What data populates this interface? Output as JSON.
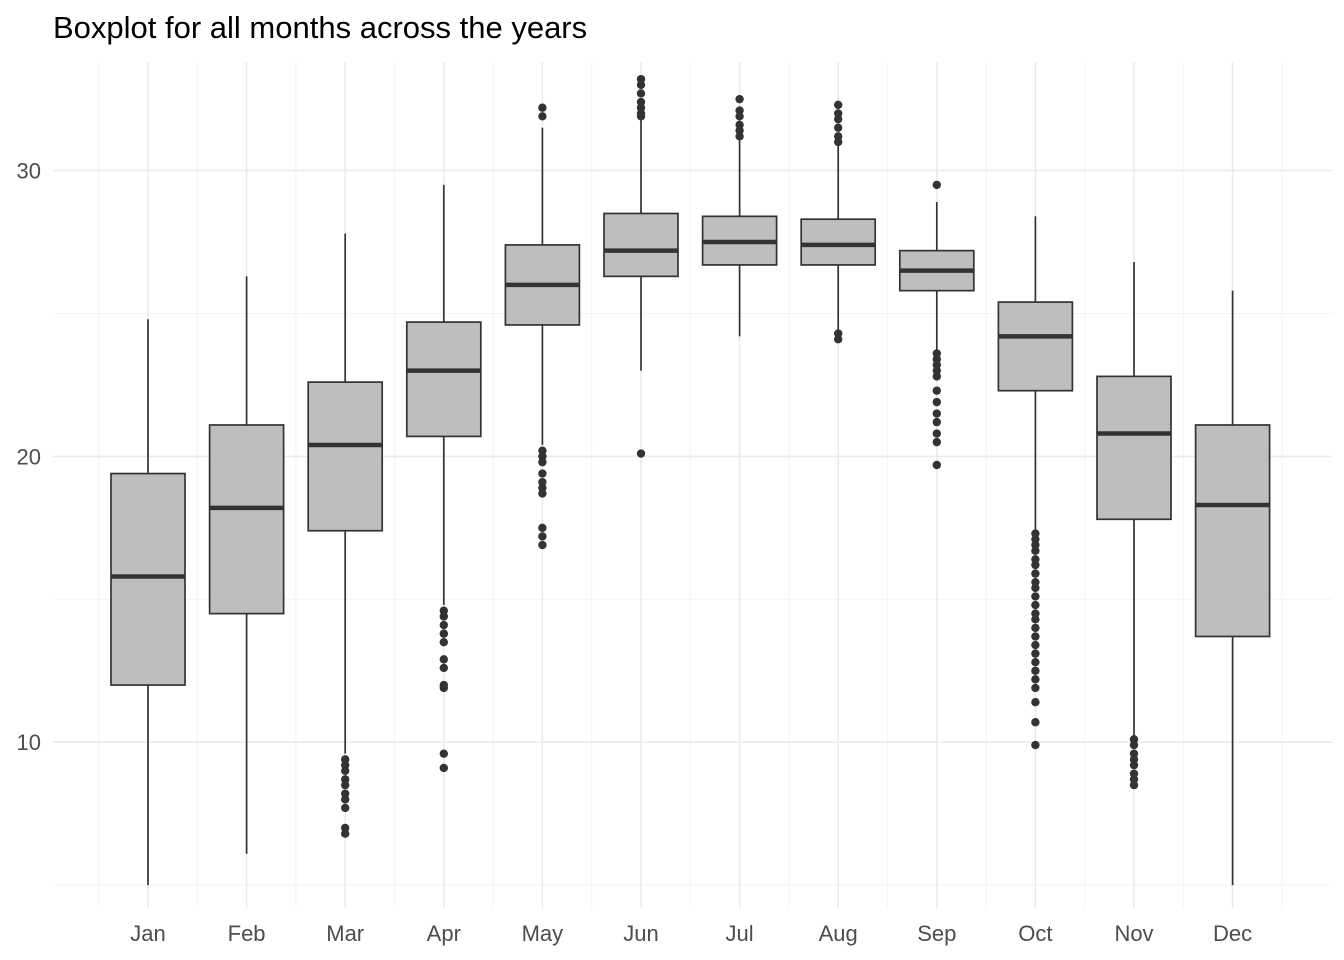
{
  "chart_data": {
    "type": "boxplot",
    "title": "Boxplot for all months across the years",
    "xlabel": "",
    "ylabel": "",
    "ylim": [
      4.2,
      33.8
    ],
    "yticks": [
      10,
      20,
      30
    ],
    "grid": true,
    "colors": {
      "box_fill": "#bebebe",
      "box_line": "#333333",
      "outlier": "#333333",
      "grid_major": "#ebebeb",
      "grid_minor": "#f4f4f4"
    },
    "categories": [
      "Jan",
      "Feb",
      "Mar",
      "Apr",
      "May",
      "Jun",
      "Jul",
      "Aug",
      "Sep",
      "Oct",
      "Nov",
      "Dec"
    ],
    "boxes": [
      {
        "label": "Jan",
        "whisker_low": 5.0,
        "q1": 12.0,
        "median": 15.8,
        "q3": 19.4,
        "whisker_high": 24.8,
        "outliers": []
      },
      {
        "label": "Feb",
        "whisker_low": 6.1,
        "q1": 14.5,
        "median": 18.2,
        "q3": 21.1,
        "whisker_high": 26.3,
        "outliers": []
      },
      {
        "label": "Mar",
        "whisker_low": 9.6,
        "q1": 17.4,
        "median": 20.4,
        "q3": 22.6,
        "whisker_high": 27.8,
        "outliers": [
          9.4,
          9.2,
          9.0,
          8.7,
          8.5,
          8.2,
          8.0,
          7.7,
          7.0,
          6.8
        ]
      },
      {
        "label": "Apr",
        "whisker_low": 14.8,
        "q1": 20.7,
        "median": 23.0,
        "q3": 24.7,
        "whisker_high": 29.5,
        "outliers": [
          14.6,
          14.4,
          14.1,
          13.8,
          13.5,
          12.9,
          12.6,
          12.0,
          11.9,
          9.6,
          9.1
        ]
      },
      {
        "label": "May",
        "whisker_low": 20.4,
        "q1": 24.6,
        "median": 26.0,
        "q3": 27.4,
        "whisker_high": 31.5,
        "outliers": [
          32.2,
          31.9,
          20.2,
          20.0,
          19.8,
          19.4,
          19.1,
          18.9,
          18.7,
          17.5,
          17.2,
          16.9
        ]
      },
      {
        "label": "Jun",
        "whisker_low": 23.0,
        "q1": 26.3,
        "median": 27.2,
        "q3": 28.5,
        "whisker_high": 31.8,
        "outliers": [
          33.2,
          33.0,
          32.7,
          32.4,
          32.2,
          32.0,
          31.9,
          20.1
        ]
      },
      {
        "label": "Jul",
        "whisker_low": 24.2,
        "q1": 26.7,
        "median": 27.5,
        "q3": 28.4,
        "whisker_high": 31.1,
        "outliers": [
          32.5,
          32.1,
          31.9,
          31.6,
          31.4,
          31.2
        ]
      },
      {
        "label": "Aug",
        "whisker_low": 24.4,
        "q1": 26.7,
        "median": 27.4,
        "q3": 28.3,
        "whisker_high": 30.9,
        "outliers": [
          32.3,
          32.0,
          31.8,
          31.5,
          31.2,
          31.0,
          24.3,
          24.1
        ]
      },
      {
        "label": "Sep",
        "whisker_low": 23.7,
        "q1": 25.8,
        "median": 26.5,
        "q3": 27.2,
        "whisker_high": 28.9,
        "outliers": [
          29.5,
          23.6,
          23.4,
          23.2,
          23.0,
          22.8,
          22.3,
          21.9,
          21.5,
          21.2,
          20.8,
          20.5,
          19.7
        ]
      },
      {
        "label": "Oct",
        "whisker_low": 17.4,
        "q1": 22.3,
        "median": 24.2,
        "q3": 25.4,
        "whisker_high": 28.4,
        "outliers": [
          17.3,
          17.1,
          16.9,
          16.7,
          16.4,
          16.2,
          15.9,
          15.6,
          15.4,
          15.1,
          14.8,
          14.5,
          14.3,
          14.0,
          13.7,
          13.4,
          13.1,
          12.8,
          12.5,
          12.2,
          11.9,
          11.4,
          10.7,
          9.9
        ]
      },
      {
        "label": "Nov",
        "whisker_low": 10.2,
        "q1": 17.8,
        "median": 20.8,
        "q3": 22.8,
        "whisker_high": 26.8,
        "outliers": [
          10.1,
          9.9,
          9.6,
          9.4,
          9.2,
          8.9,
          8.7,
          8.5
        ]
      },
      {
        "label": "Dec",
        "whisker_low": 5.0,
        "q1": 13.7,
        "median": 18.3,
        "q3": 21.1,
        "whisker_high": 25.8,
        "outliers": []
      }
    ]
  }
}
